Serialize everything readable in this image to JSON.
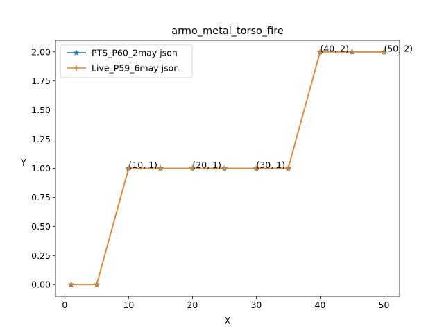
{
  "chart_data": {
    "type": "line",
    "title": "armo_metal_torso_fire",
    "xlabel": "X",
    "ylabel": "Y",
    "xlim": [
      -1.45,
      52.45
    ],
    "ylim": [
      -0.1,
      2.1
    ],
    "xticks": [
      0,
      10,
      20,
      30,
      40,
      50
    ],
    "yticks": [
      0.0,
      0.25,
      0.5,
      0.75,
      1.0,
      1.25,
      1.5,
      1.75,
      2.0
    ],
    "ytick_labels": [
      "0.00",
      "0.25",
      "0.50",
      "0.75",
      "1.00",
      "1.25",
      "1.50",
      "1.75",
      "2.00"
    ],
    "grid": false,
    "legend_position": "top-left",
    "series": [
      {
        "name": "PTS_P60_2may json",
        "color": "#1f77b4",
        "marker": "star",
        "x": [
          1,
          5,
          10,
          15,
          20,
          25,
          30,
          35,
          40,
          45,
          50
        ],
        "y": [
          0,
          0,
          1,
          1,
          1,
          1,
          1,
          1,
          2,
          2,
          2
        ]
      },
      {
        "name": "Live_P59_6may json",
        "color": "#ff7f0e",
        "marker": "plus",
        "x": [
          1,
          5,
          10,
          15,
          20,
          25,
          30,
          35,
          40,
          45,
          50
        ],
        "y": [
          0,
          0,
          1,
          1,
          1,
          1,
          1,
          1,
          2,
          2,
          2
        ]
      }
    ],
    "annotations": [
      {
        "text": "(10, 1)",
        "x": 10,
        "y": 1
      },
      {
        "text": "(20, 1)",
        "x": 20,
        "y": 1
      },
      {
        "text": "(30, 1)",
        "x": 30,
        "y": 1
      },
      {
        "text": "(40, 2)",
        "x": 40,
        "y": 2
      },
      {
        "text": "(50, 2)",
        "x": 50,
        "y": 2
      }
    ]
  }
}
